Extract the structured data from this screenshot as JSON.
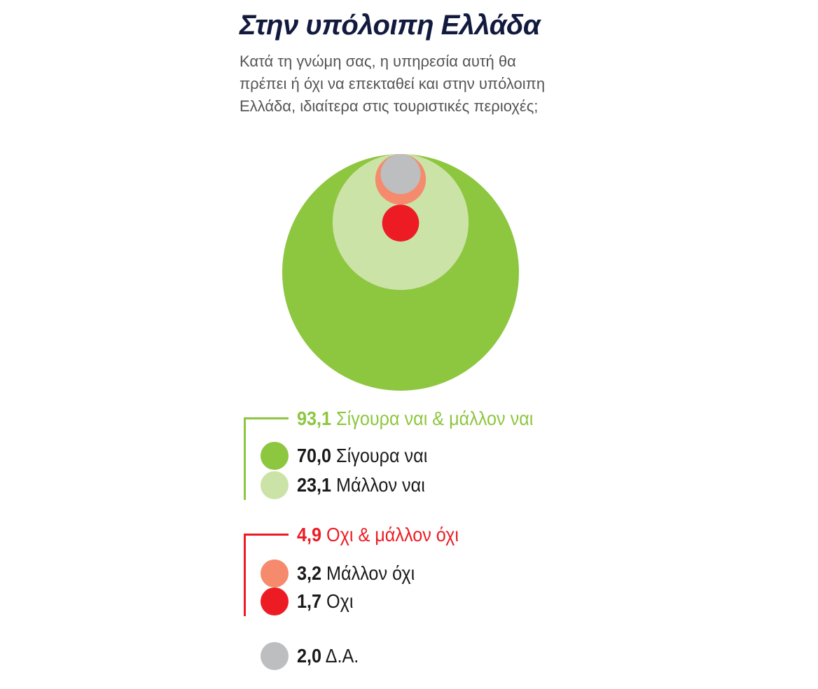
{
  "title": "Στην υπόλοιπη Ελλάδα",
  "subtitle": "Κατά τη γνώμη σας, η υπηρεσία αυτή θα πρέπει ή όχι να επεκταθεί και στην υπόλοιπη Ελλάδα, ιδιαίτερα στις τουριστικές περιοχές;",
  "colors": {
    "sigoura_nai": "#8dc63f",
    "mallon_nai": "#cbe3a7",
    "mallon_ochi": "#f58b6c",
    "ochi": "#ed1c24",
    "da": "#bcbec0",
    "title": "#121a3e"
  },
  "groups": {
    "yes": {
      "value": "93,1",
      "label": "Σίγουρα ναι & μάλλον ναι"
    },
    "no": {
      "value": "4,9",
      "label": "Οχι & μάλλον όχι"
    }
  },
  "legend": {
    "sigoura_nai": {
      "value": "70,0",
      "label": "Σίγουρα ναι"
    },
    "mallon_nai": {
      "value": "23,1",
      "label": "Μάλλον ναι"
    },
    "mallon_ochi": {
      "value": "3,2",
      "label": "Μάλλον όχι"
    },
    "ochi": {
      "value": "1,7",
      "label": "Οχι"
    },
    "da": {
      "value": "2,0",
      "label": "Δ.Α."
    }
  },
  "chart_data": {
    "type": "bubble",
    "title": "Στην υπόλοιπη Ελλάδα",
    "categories": [
      "Σίγουρα ναι",
      "Μάλλον ναι",
      "Μάλλον όχι",
      "Οχι",
      "Δ.Α."
    ],
    "values": [
      70.0,
      23.1,
      3.2,
      1.7,
      2.0
    ],
    "groups": [
      {
        "name": "Σίγουρα ναι & μάλλον ναι",
        "value": 93.1,
        "members": [
          "Σίγουρα ναι",
          "Μάλλον ναι"
        ]
      },
      {
        "name": "Οχι & μάλλον όχι",
        "value": 4.9,
        "members": [
          "Μάλλον όχι",
          "Οχι"
        ]
      }
    ],
    "unit": "%"
  }
}
